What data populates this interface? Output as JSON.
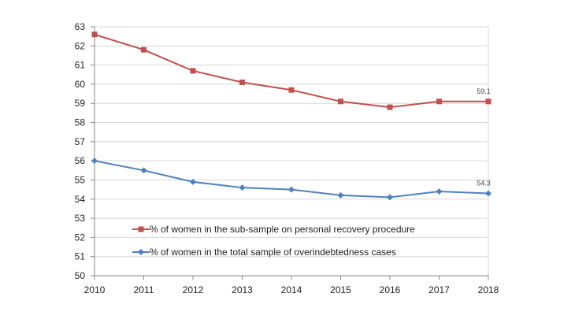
{
  "chart_data": {
    "type": "line",
    "title": "",
    "xlabel": "",
    "ylabel": "",
    "x": [
      "2010",
      "2011",
      "2012",
      "2013",
      "2014",
      "2015",
      "2016",
      "2017",
      "2018"
    ],
    "ylim": [
      50,
      63
    ],
    "yticks": [
      50,
      51,
      52,
      53,
      54,
      55,
      56,
      57,
      58,
      59,
      60,
      61,
      62,
      63
    ],
    "grid": true,
    "legend_position": "lower-left-inside",
    "series": [
      {
        "name": "% of women in the sub-sample on personal recovery procedure",
        "color": "#C0504D",
        "marker": "square",
        "values": [
          62.6,
          61.8,
          60.7,
          60.1,
          59.7,
          59.1,
          58.8,
          59.1,
          59.1
        ],
        "end_label": "59.1"
      },
      {
        "name": "% of women in the total sample of overindebtedness cases",
        "color": "#4F81BD",
        "marker": "diamond",
        "values": [
          56.0,
          55.5,
          54.9,
          54.6,
          54.5,
          54.2,
          54.1,
          54.4,
          54.3
        ],
        "end_label": "54.3"
      }
    ]
  }
}
